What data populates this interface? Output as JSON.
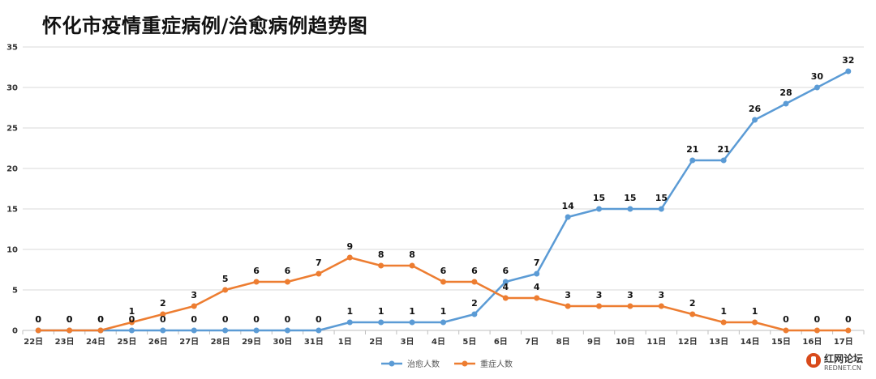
{
  "chart_data": {
    "type": "line",
    "title": "怀化市疫情重症病例/治愈病例趋势图",
    "categories": [
      "22日",
      "23日",
      "24日",
      "25日",
      "26日",
      "27日",
      "28日",
      "29日",
      "30日",
      "31日",
      "1日",
      "2日",
      "3日",
      "4日",
      "5日",
      "6日",
      "7日",
      "8日",
      "9日",
      "10日",
      "11日",
      "12日",
      "13日",
      "14日",
      "15日",
      "16日",
      "17日"
    ],
    "series": [
      {
        "name": "治愈人数",
        "color": "#5b9bd5",
        "values": [
          0,
          0,
          0,
          0,
          0,
          0,
          0,
          0,
          0,
          0,
          1,
          1,
          1,
          1,
          2,
          6,
          7,
          14,
          15,
          15,
          15,
          21,
          21,
          26,
          28,
          30,
          32
        ]
      },
      {
        "name": "重症人数",
        "color": "#ed7d31",
        "values": [
          0,
          0,
          0,
          1,
          2,
          3,
          5,
          6,
          6,
          7,
          9,
          8,
          8,
          6,
          6,
          4,
          4,
          3,
          3,
          3,
          3,
          2,
          1,
          1,
          0,
          0,
          0
        ]
      }
    ],
    "ylim": [
      0,
      35
    ],
    "yticks": [
      0,
      5,
      10,
      15,
      20,
      25,
      30,
      35
    ],
    "grid": true,
    "legend_position": "bottom-center"
  },
  "watermark": {
    "name": "红网论坛",
    "url": "REDNET.CN"
  }
}
